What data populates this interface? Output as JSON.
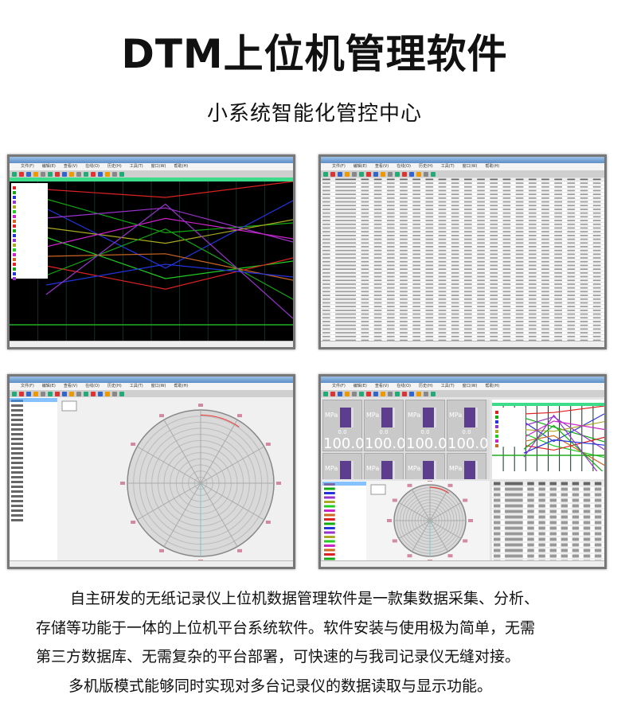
{
  "header": {
    "title": "DTM上位机管理软件",
    "subtitle": "小系统智能化管控中心"
  },
  "app": {
    "menu": [
      "文件(F)",
      "编辑(E)",
      "查看(V)",
      "在线(O)",
      "历史(H)",
      "工具(T)",
      "窗口(W)",
      "帮助(H)"
    ],
    "accent": "#3ddc8a",
    "gauge": {
      "unit": "MPa",
      "min_value": "0.0",
      "value": "100.0",
      "fill_percent": 100,
      "bar_color": "#5d3d8e"
    }
  },
  "description": {
    "lines": [
      "自主研发的无纸记录仪上位机数据管理软件是一款集数据采集、分析、",
      "存储等功能于一体的上位机平台系统软件。软件安装与使用极为简单，无需",
      "第三方数据库、无需复杂的平台部署，可快速的与我司记录仪无缝对接。",
      "多机版模式能够同时实现对多台记录仪的数据读取与显示功能。"
    ]
  }
}
